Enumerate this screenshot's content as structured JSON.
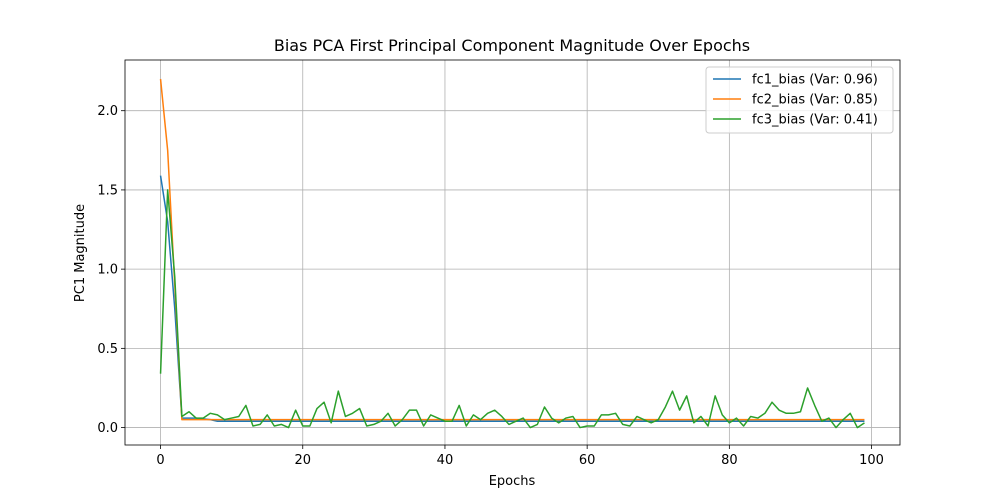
{
  "chart_data": {
    "type": "line",
    "title": "Bias PCA First Principal Component Magnitude Over Epochs",
    "xlabel": "Epochs",
    "ylabel": "PC1 Magnitude",
    "xlim": [
      -5,
      104
    ],
    "ylim": [
      -0.11,
      2.32
    ],
    "xticks": [
      0,
      20,
      40,
      60,
      80,
      100
    ],
    "yticks": [
      0.0,
      0.5,
      1.0,
      1.5,
      2.0
    ],
    "xtick_labels": [
      "0",
      "20",
      "40",
      "60",
      "80",
      "100"
    ],
    "ytick_labels": [
      "0.0",
      "0.5",
      "1.0",
      "1.5",
      "2.0"
    ],
    "grid": true,
    "legend_position": "top-right",
    "x": [
      0,
      1,
      2,
      3,
      4,
      5,
      6,
      7,
      8,
      9,
      10,
      11,
      12,
      13,
      14,
      15,
      16,
      17,
      18,
      19,
      20,
      21,
      22,
      23,
      24,
      25,
      26,
      27,
      28,
      29,
      30,
      31,
      32,
      33,
      34,
      35,
      36,
      37,
      38,
      39,
      40,
      41,
      42,
      43,
      44,
      45,
      46,
      47,
      48,
      49,
      50,
      51,
      52,
      53,
      54,
      55,
      56,
      57,
      58,
      59,
      60,
      61,
      62,
      63,
      64,
      65,
      66,
      67,
      68,
      69,
      70,
      71,
      72,
      73,
      74,
      75,
      76,
      77,
      78,
      79,
      80,
      81,
      82,
      83,
      84,
      85,
      86,
      87,
      88,
      89,
      90,
      91,
      92,
      93,
      94,
      95,
      96,
      97,
      98,
      99
    ],
    "series": [
      {
        "name": "fc1_bias (Var: 0.96)",
        "color": "#1f77b4",
        "values": [
          1.59,
          1.3,
          0.75,
          0.06,
          0.06,
          0.06,
          0.055,
          0.05,
          0.04,
          0.04,
          0.04,
          0.04,
          0.04,
          0.04,
          0.04,
          0.04,
          0.04,
          0.04,
          0.04,
          0.04,
          0.04,
          0.04,
          0.04,
          0.04,
          0.04,
          0.04,
          0.04,
          0.04,
          0.04,
          0.04,
          0.04,
          0.04,
          0.04,
          0.04,
          0.04,
          0.04,
          0.04,
          0.04,
          0.04,
          0.04,
          0.04,
          0.04,
          0.04,
          0.04,
          0.04,
          0.04,
          0.04,
          0.04,
          0.04,
          0.04,
          0.04,
          0.04,
          0.04,
          0.04,
          0.04,
          0.04,
          0.04,
          0.04,
          0.04,
          0.04,
          0.04,
          0.04,
          0.04,
          0.04,
          0.04,
          0.04,
          0.04,
          0.04,
          0.04,
          0.04,
          0.04,
          0.04,
          0.04,
          0.04,
          0.04,
          0.04,
          0.04,
          0.04,
          0.04,
          0.04,
          0.04,
          0.04,
          0.04,
          0.04,
          0.04,
          0.04,
          0.04,
          0.04,
          0.04,
          0.04,
          0.04,
          0.04,
          0.04,
          0.04,
          0.04,
          0.04,
          0.04,
          0.04,
          0.04,
          0.04
        ]
      },
      {
        "name": "fc2_bias (Var: 0.85)",
        "color": "#ff7f0e",
        "values": [
          2.2,
          1.75,
          0.9,
          0.05,
          0.05,
          0.05,
          0.05,
          0.05,
          0.05,
          0.05,
          0.05,
          0.05,
          0.05,
          0.05,
          0.05,
          0.05,
          0.05,
          0.05,
          0.05,
          0.05,
          0.05,
          0.05,
          0.05,
          0.05,
          0.05,
          0.05,
          0.05,
          0.05,
          0.05,
          0.05,
          0.05,
          0.05,
          0.05,
          0.05,
          0.05,
          0.05,
          0.05,
          0.05,
          0.05,
          0.05,
          0.05,
          0.05,
          0.05,
          0.05,
          0.05,
          0.05,
          0.05,
          0.05,
          0.05,
          0.05,
          0.05,
          0.05,
          0.05,
          0.05,
          0.05,
          0.05,
          0.05,
          0.05,
          0.05,
          0.05,
          0.05,
          0.05,
          0.05,
          0.05,
          0.05,
          0.05,
          0.05,
          0.05,
          0.05,
          0.05,
          0.05,
          0.05,
          0.05,
          0.05,
          0.05,
          0.05,
          0.05,
          0.05,
          0.05,
          0.05,
          0.05,
          0.05,
          0.05,
          0.05,
          0.05,
          0.05,
          0.05,
          0.05,
          0.05,
          0.05,
          0.05,
          0.05,
          0.05,
          0.05,
          0.05,
          0.05,
          0.05,
          0.05,
          0.05,
          0.05
        ]
      },
      {
        "name": "fc3_bias (Var: 0.41)",
        "color": "#2ca02c",
        "values": [
          0.34,
          1.5,
          0.95,
          0.07,
          0.1,
          0.06,
          0.06,
          0.09,
          0.08,
          0.05,
          0.06,
          0.07,
          0.14,
          0.01,
          0.02,
          0.08,
          0.01,
          0.02,
          0.0,
          0.11,
          0.01,
          0.01,
          0.12,
          0.16,
          0.03,
          0.23,
          0.07,
          0.09,
          0.12,
          0.01,
          0.02,
          0.04,
          0.09,
          0.01,
          0.05,
          0.11,
          0.11,
          0.01,
          0.08,
          0.06,
          0.04,
          0.04,
          0.14,
          0.01,
          0.08,
          0.05,
          0.09,
          0.11,
          0.07,
          0.02,
          0.04,
          0.06,
          0.0,
          0.02,
          0.13,
          0.06,
          0.03,
          0.06,
          0.07,
          0.0,
          0.01,
          0.01,
          0.08,
          0.08,
          0.09,
          0.02,
          0.01,
          0.07,
          0.05,
          0.03,
          0.05,
          0.13,
          0.23,
          0.11,
          0.2,
          0.03,
          0.07,
          0.01,
          0.2,
          0.08,
          0.03,
          0.06,
          0.01,
          0.07,
          0.06,
          0.09,
          0.16,
          0.11,
          0.09,
          0.09,
          0.1,
          0.25,
          0.14,
          0.04,
          0.06,
          0.0,
          0.05,
          0.09,
          0.0,
          0.03
        ]
      }
    ]
  }
}
